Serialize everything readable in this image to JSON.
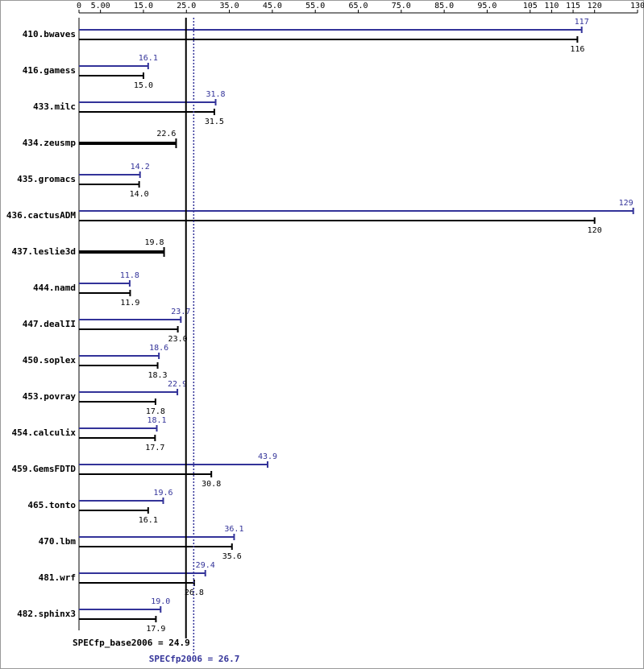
{
  "chart_data": {
    "type": "bar",
    "orientation": "horizontal",
    "categories": [
      "410.bwaves",
      "416.gamess",
      "433.milc",
      "434.zeusmp",
      "435.gromacs",
      "436.cactusADM",
      "437.leslie3d",
      "444.namd",
      "447.dealII",
      "450.soplex",
      "453.povray",
      "454.calculix",
      "459.GemsFDTD",
      "465.tonto",
      "470.lbm",
      "481.wrf",
      "482.sphinx3"
    ],
    "series": [
      {
        "color": "#333399",
        "values": [
          117,
          16.1,
          31.8,
          null,
          14.2,
          129,
          null,
          11.8,
          23.7,
          18.6,
          22.9,
          18.1,
          43.9,
          19.6,
          36.1,
          29.4,
          19.0
        ],
        "value_labels": [
          "117",
          "16.1",
          "31.8",
          null,
          "14.2",
          "129",
          null,
          "11.8",
          "23.7",
          "18.6",
          "22.9",
          "18.1",
          "43.9",
          "19.6",
          "36.1",
          "29.4",
          "19.0"
        ]
      },
      {
        "color": "#000000",
        "values": [
          116,
          15.0,
          31.5,
          22.6,
          14.0,
          120,
          19.8,
          11.9,
          23.0,
          18.3,
          17.8,
          17.7,
          30.8,
          16.1,
          35.6,
          26.8,
          17.9
        ],
        "value_labels": [
          "116",
          "15.0",
          "31.5",
          "22.6",
          "14.0",
          "120",
          "19.8",
          "11.9",
          "23.0",
          "18.3",
          "17.8",
          "17.7",
          "30.8",
          "16.1",
          "35.6",
          "26.8",
          "17.9"
        ]
      }
    ],
    "xlim": [
      0,
      130
    ],
    "xticks": [
      0,
      {
        "value": 5,
        "label": "5.00"
      },
      {
        "value": 15,
        "label": "15.0"
      },
      {
        "value": 25,
        "label": "25.0"
      },
      {
        "value": 35,
        "label": "35.0"
      },
      {
        "value": 45,
        "label": "45.0"
      },
      {
        "value": 55,
        "label": "55.0"
      },
      {
        "value": 65,
        "label": "65.0"
      },
      {
        "value": 75,
        "label": "75.0"
      },
      {
        "value": 85,
        "label": "85.0"
      },
      {
        "value": 95,
        "label": "95.0"
      },
      105,
      110,
      115,
      120,
      130
    ],
    "reference_lines": [
      {
        "value": 24.9,
        "label": "SPECfp_base2006 = 24.9",
        "color": "#000000",
        "dashed": false
      },
      {
        "value": 26.7,
        "label": "SPECfp2006 = 26.7",
        "color": "#333399",
        "dashed": true
      }
    ]
  }
}
